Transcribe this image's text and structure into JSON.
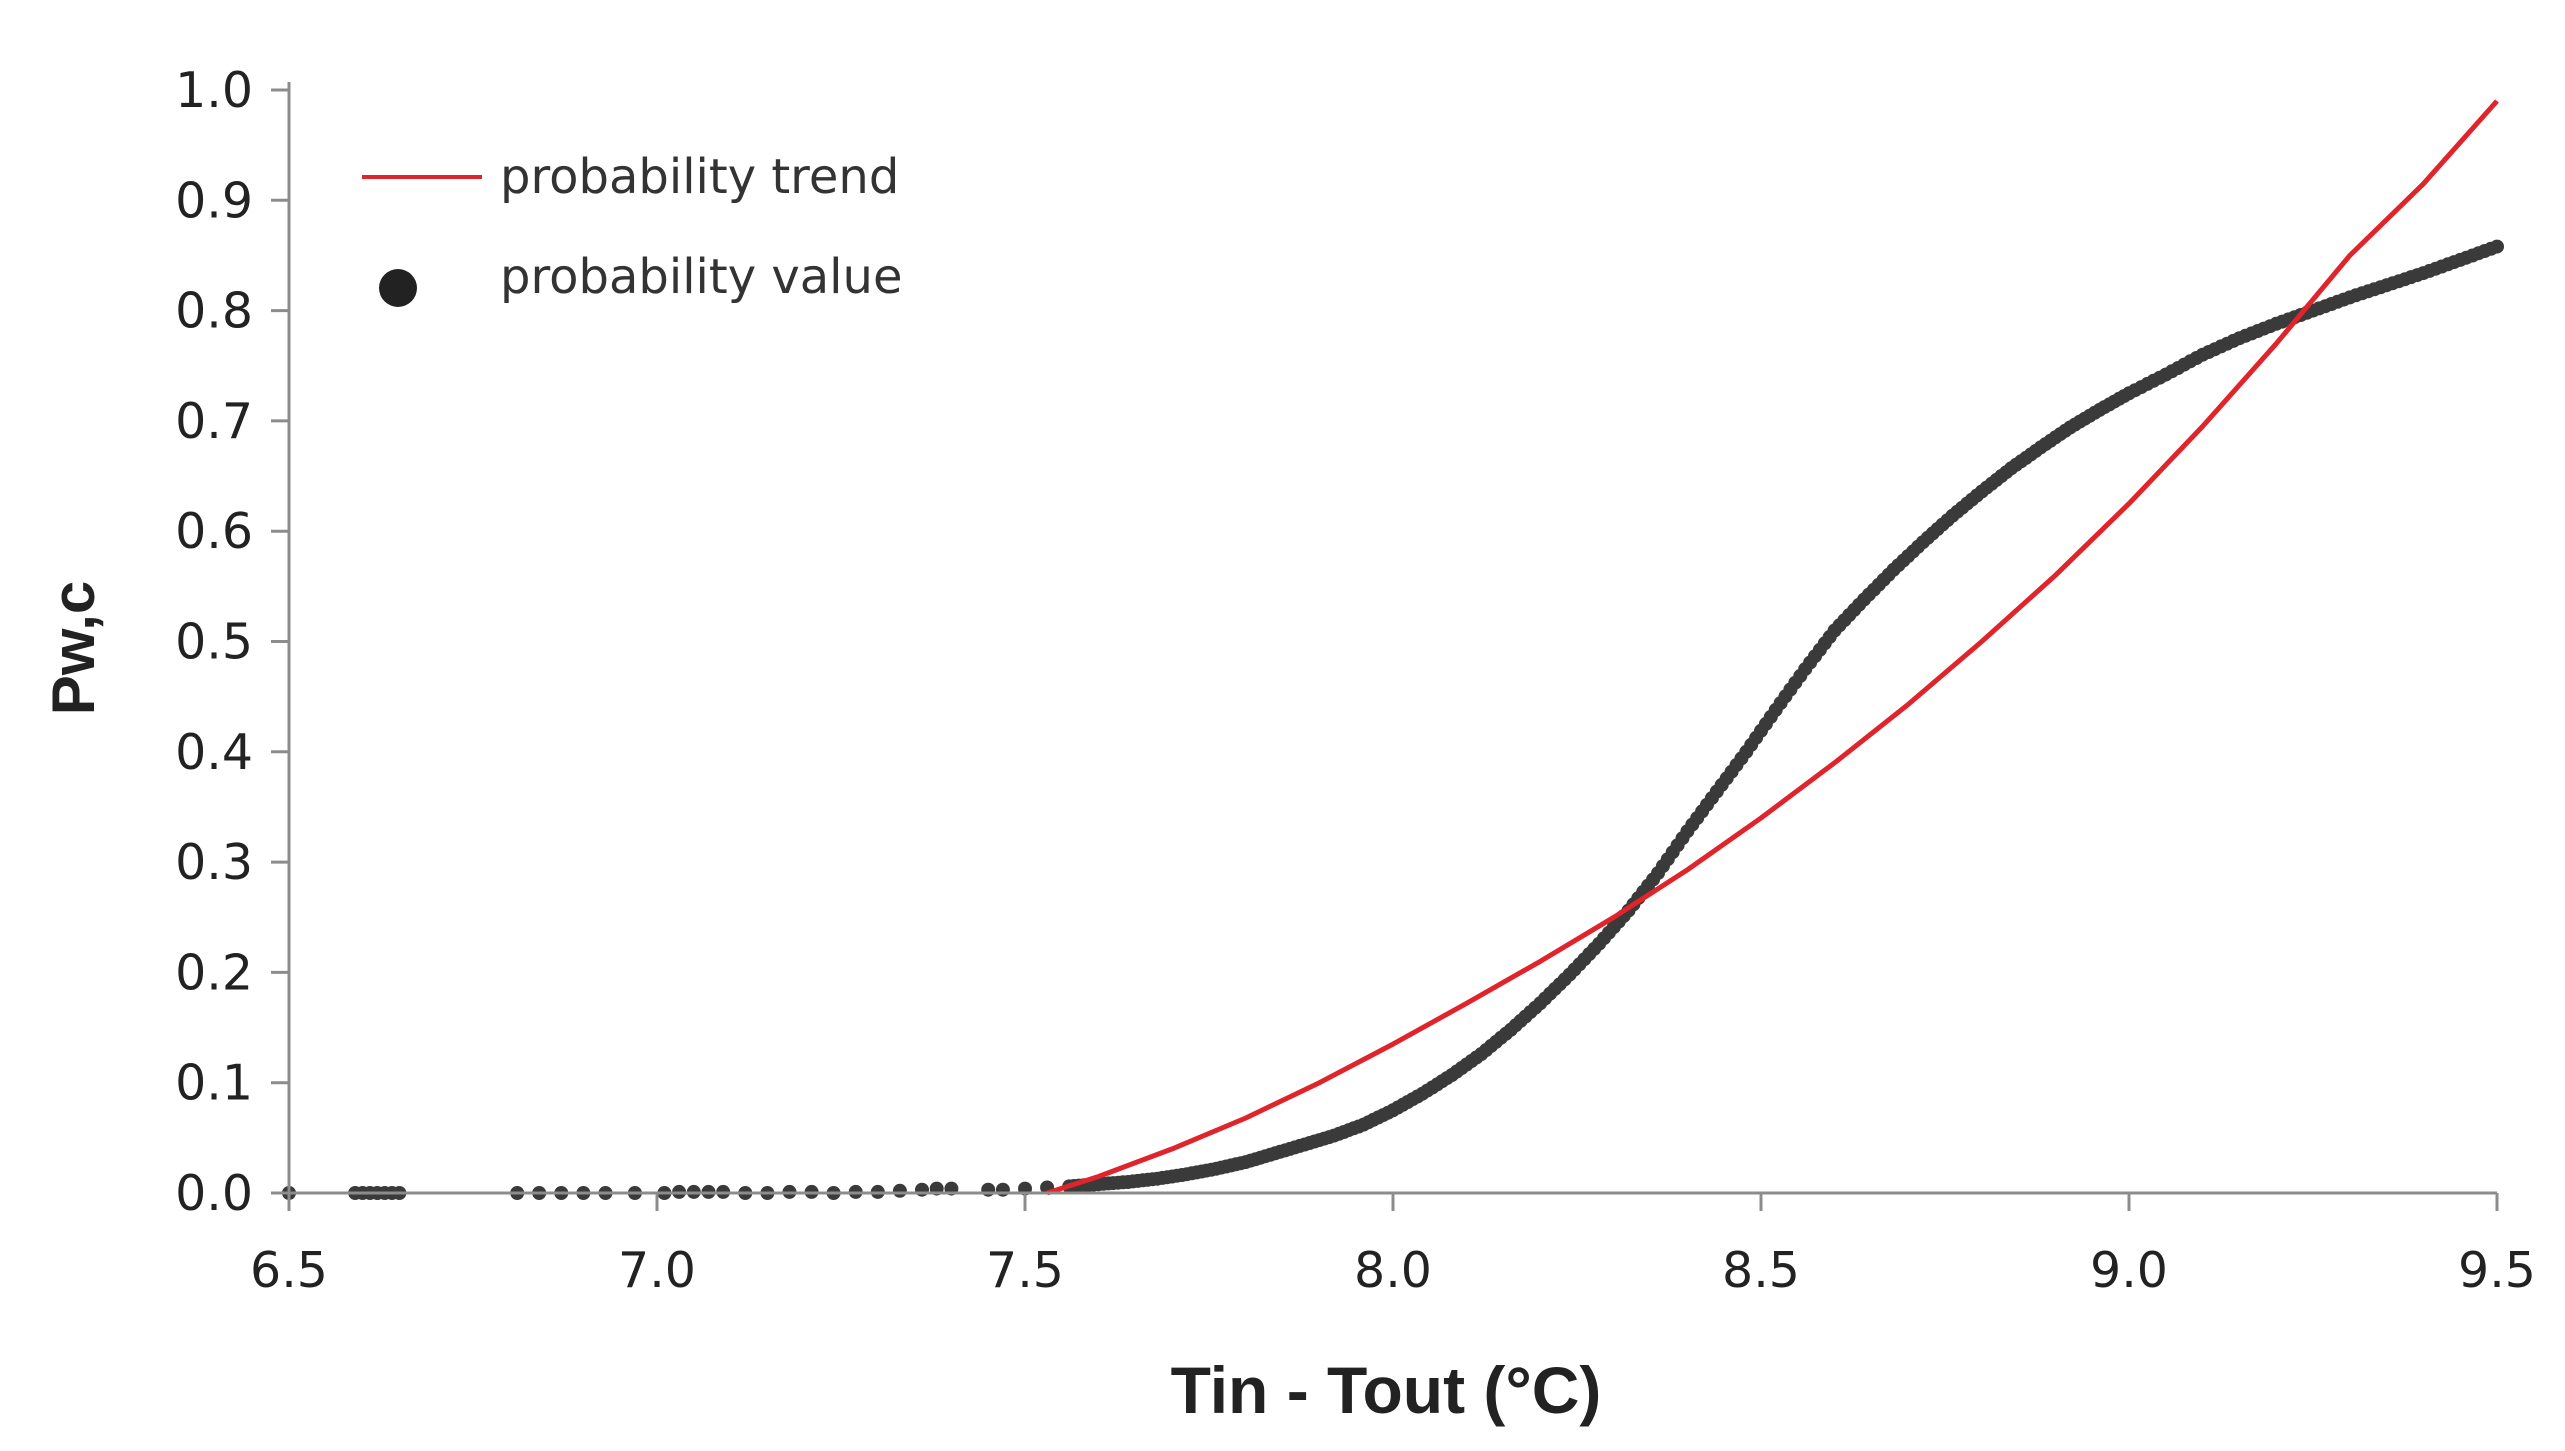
{
  "chart_data": {
    "type": "scatter",
    "title": "",
    "xlabel": "Tin - Tout (°C)",
    "ylabel": "Pw,c",
    "xlim": [
      6.5,
      9.5
    ],
    "ylim": [
      0.0,
      1.0
    ],
    "x_ticks": [
      6.5,
      7.0,
      7.5,
      8.0,
      8.5,
      9.0,
      9.5
    ],
    "x_tick_labels": [
      "6.5",
      "7.0",
      "7.5",
      "8.0",
      "8.5",
      "9.0",
      "9.5"
    ],
    "y_ticks": [
      0.0,
      0.1,
      0.2,
      0.3,
      0.4,
      0.5,
      0.6,
      0.7,
      0.8,
      0.9,
      1.0
    ],
    "y_tick_labels": [
      "0.0",
      "0.1",
      "0.2",
      "0.3",
      "0.4",
      "0.5",
      "0.6",
      "0.7",
      "0.8",
      "0.9",
      "1.0"
    ],
    "grid": false,
    "legend_position": "top-left",
    "series": [
      {
        "name": "probability trend",
        "kind": "line",
        "color": "#e0242b",
        "x": [
          7.53,
          7.6,
          7.7,
          7.8,
          7.9,
          8.0,
          8.1,
          8.2,
          8.3,
          8.4,
          8.5,
          8.6,
          8.7,
          8.8,
          8.9,
          9.0,
          9.1,
          9.2,
          9.3,
          9.4,
          9.5
        ],
        "y": [
          0.0,
          0.015,
          0.04,
          0.068,
          0.1,
          0.135,
          0.172,
          0.21,
          0.25,
          0.293,
          0.34,
          0.39,
          0.443,
          0.5,
          0.56,
          0.625,
          0.695,
          0.77,
          0.85,
          0.915,
          0.99
        ]
      },
      {
        "name": "probability value",
        "kind": "scatter",
        "color": "#3a3a3a",
        "x": [
          6.5,
          6.59,
          6.6,
          6.61,
          6.62,
          6.63,
          6.64,
          6.65,
          6.81,
          6.84,
          6.87,
          6.9,
          6.93,
          6.97,
          7.01,
          7.03,
          7.05,
          7.07,
          7.09,
          7.12,
          7.15,
          7.18,
          7.21,
          7.24,
          7.27,
          7.3,
          7.33,
          7.36,
          7.38,
          7.4,
          7.45,
          7.47,
          7.5,
          7.53,
          7.56,
          7.6,
          7.64,
          7.68,
          7.72,
          7.76,
          7.8,
          7.84,
          7.88,
          7.92,
          7.96,
          8.0,
          8.04,
          8.08,
          8.12,
          8.16,
          8.2,
          8.24,
          8.28,
          8.32,
          8.36,
          8.4,
          8.44,
          8.48,
          8.52,
          8.56,
          8.6,
          8.64,
          8.68,
          8.72,
          8.76,
          8.8,
          8.84,
          8.88,
          8.92,
          8.96,
          9.0,
          9.05,
          9.1,
          9.15,
          9.2,
          9.25,
          9.3,
          9.35,
          9.4,
          9.45,
          9.5
        ],
        "y": [
          0.0,
          0.0,
          0.0,
          0.0,
          0.0,
          0.0,
          0.0,
          0.0,
          0.0,
          0.0,
          0.0,
          0.0,
          0.0,
          0.0,
          0.0,
          0.001,
          0.001,
          0.001,
          0.001,
          0.0,
          0.0,
          0.001,
          0.001,
          0.0,
          0.001,
          0.001,
          0.002,
          0.003,
          0.004,
          0.004,
          0.003,
          0.003,
          0.004,
          0.005,
          0.006,
          0.008,
          0.01,
          0.013,
          0.017,
          0.022,
          0.028,
          0.036,
          0.044,
          0.052,
          0.062,
          0.075,
          0.09,
          0.107,
          0.126,
          0.148,
          0.172,
          0.198,
          0.226,
          0.256,
          0.29,
          0.328,
          0.364,
          0.4,
          0.438,
          0.475,
          0.51,
          0.538,
          0.565,
          0.59,
          0.614,
          0.636,
          0.657,
          0.676,
          0.694,
          0.71,
          0.725,
          0.742,
          0.76,
          0.775,
          0.788,
          0.8,
          0.812,
          0.823,
          0.834,
          0.846,
          0.858
        ]
      }
    ]
  }
}
